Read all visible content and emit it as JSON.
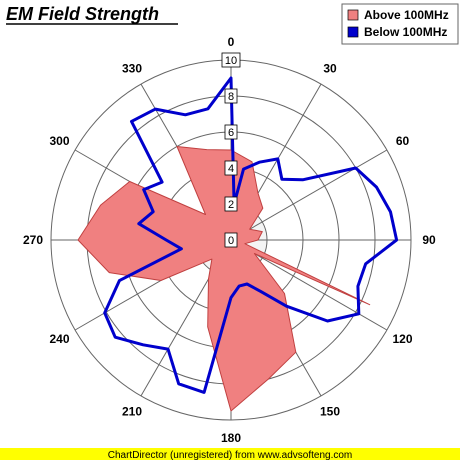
{
  "chart_data": {
    "type": "polar",
    "title": "EM Field Strength",
    "angular_axis": {
      "unit": "degrees",
      "direction": "clockwise",
      "zero_at": "top",
      "tick_labels": [
        "0",
        "30",
        "60",
        "90",
        "120",
        "150",
        "180",
        "210",
        "240",
        "270",
        "300",
        "330"
      ]
    },
    "radial_axis": {
      "range": [
        0,
        10
      ],
      "tick_labels": [
        "0",
        "2",
        "4",
        "6",
        "8",
        "10"
      ]
    },
    "grid": true,
    "legend": {
      "position": "top-right"
    },
    "series": [
      {
        "name": "Above 100MHz",
        "style": "area",
        "color": "#f08080",
        "points": [
          [
            0,
            5
          ],
          [
            15,
            4.5
          ],
          [
            30,
            3.0
          ],
          [
            45,
            2.5
          ],
          [
            60,
            1.2
          ],
          [
            75,
            1.8
          ],
          [
            90,
            1.5
          ],
          [
            105,
            0.8
          ],
          [
            115,
            8.5
          ],
          [
            120,
            1.5
          ],
          [
            135,
            4.2
          ],
          [
            150,
            7.2
          ],
          [
            165,
            8.0
          ],
          [
            180,
            9.5
          ],
          [
            195,
            5.0
          ],
          [
            210,
            2.5
          ],
          [
            225,
            1.5
          ],
          [
            240,
            4.5
          ],
          [
            255,
            7.0
          ],
          [
            270,
            8.5
          ],
          [
            285,
            7.5
          ],
          [
            300,
            6.5
          ],
          [
            315,
            2.0
          ],
          [
            330,
            6.0
          ],
          [
            345,
            5.2
          ],
          [
            360,
            5
          ]
        ]
      },
      {
        "name": "Below 100MHz",
        "style": "line",
        "color": "#0000cc",
        "points": [
          [
            0,
            9.0
          ],
          [
            5,
            2.0
          ],
          [
            10,
            4.0
          ],
          [
            20,
            4.6
          ],
          [
            30,
            5.2
          ],
          [
            40,
            4.4
          ],
          [
            50,
            5.2
          ],
          [
            60,
            8.0
          ],
          [
            70,
            8.6
          ],
          [
            80,
            9.0
          ],
          [
            90,
            9.2
          ],
          [
            100,
            7.6
          ],
          [
            110,
            7.5
          ],
          [
            120,
            8.2
          ],
          [
            130,
            7.0
          ],
          [
            140,
            4.8
          ],
          [
            150,
            3.3
          ],
          [
            160,
            2.6
          ],
          [
            170,
            2.6
          ],
          [
            180,
            3.2
          ],
          [
            190,
            8.6
          ],
          [
            200,
            8.5
          ],
          [
            210,
            7.0
          ],
          [
            220,
            7.6
          ],
          [
            230,
            8.4
          ],
          [
            240,
            8.1
          ],
          [
            250,
            6.6
          ],
          [
            260,
            2.8
          ],
          [
            270,
            3.6
          ],
          [
            280,
            5.2
          ],
          [
            290,
            4.6
          ],
          [
            300,
            5.6
          ],
          [
            310,
            5.0
          ],
          [
            320,
            8.6
          ],
          [
            330,
            8.4
          ],
          [
            340,
            7.4
          ],
          [
            350,
            7.4
          ],
          [
            360,
            9.0
          ]
        ]
      }
    ]
  },
  "footer": "ChartDirector (unregistered) from www.advsofteng.com",
  "colors": {
    "background": "#ffffff",
    "grid": "#666666",
    "inner_fill": "#f4f4f4",
    "footer_bar": "#ffff00"
  }
}
